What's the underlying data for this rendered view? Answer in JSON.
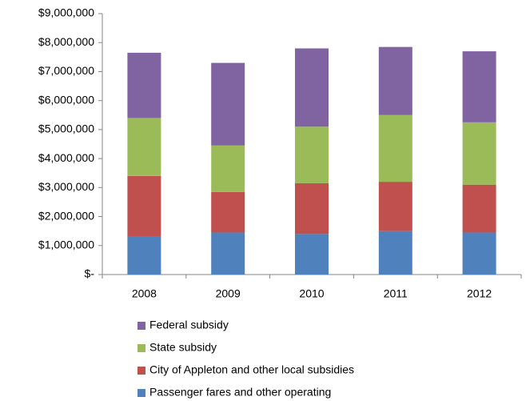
{
  "chart_data": {
    "type": "stacked_bar",
    "categories": [
      "2008",
      "2009",
      "2010",
      "2011",
      "2012"
    ],
    "series": [
      {
        "name": "Passenger fares and other operating",
        "color": "#4f81bd",
        "values": [
          1300000,
          1450000,
          1400000,
          1500000,
          1450000
        ]
      },
      {
        "name": "City of Appleton and other local subsidies",
        "color": "#c0504d",
        "values": [
          2100000,
          1400000,
          1750000,
          1700000,
          1650000
        ]
      },
      {
        "name": "State subsidy",
        "color": "#9bbb59",
        "values": [
          2000000,
          1600000,
          1950000,
          2300000,
          2150000
        ]
      },
      {
        "name": "Federal subsidy",
        "color": "#8064a2",
        "values": [
          2250000,
          2850000,
          2700000,
          2350000,
          2450000
        ]
      }
    ],
    "ylim": [
      0,
      9000000
    ],
    "yticks": [
      {
        "value": 0,
        "label": "$-"
      },
      {
        "value": 1000000,
        "label": "$1,000,000"
      },
      {
        "value": 2000000,
        "label": "$2,000,000"
      },
      {
        "value": 3000000,
        "label": "$3,000,000"
      },
      {
        "value": 4000000,
        "label": "$4,000,000"
      },
      {
        "value": 5000000,
        "label": "$5,000,000"
      },
      {
        "value": 6000000,
        "label": "$6,000,000"
      },
      {
        "value": 7000000,
        "label": "$7,000,000"
      },
      {
        "value": 8000000,
        "label": "$8,000,000"
      },
      {
        "value": 9000000,
        "label": "$9,000,000"
      }
    ],
    "grid": false,
    "legend": "bottom"
  }
}
